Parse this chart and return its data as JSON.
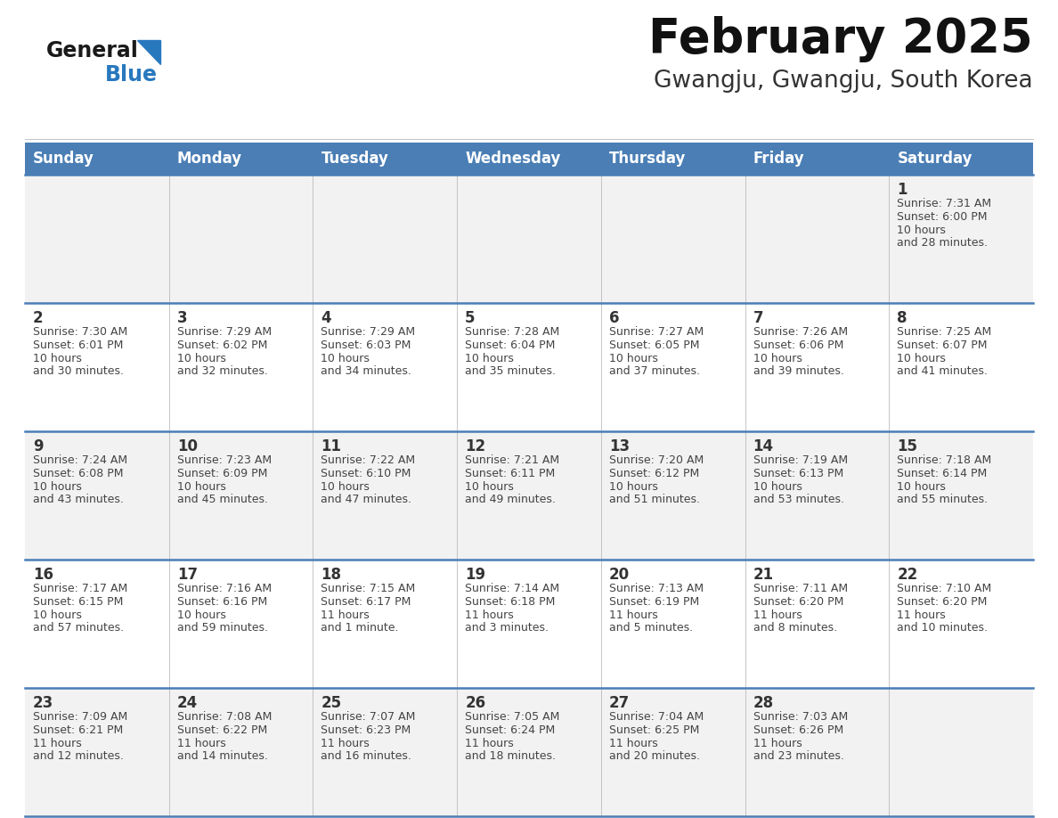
{
  "title": "February 2025",
  "subtitle": "Gwangju, Gwangju, South Korea",
  "days_of_week": [
    "Sunday",
    "Monday",
    "Tuesday",
    "Wednesday",
    "Thursday",
    "Friday",
    "Saturday"
  ],
  "header_bg": "#4A7EB5",
  "header_text": "#FFFFFF",
  "cell_bg_odd": "#F2F2F2",
  "cell_bg_even": "#FFFFFF",
  "row_line_color": "#4A7EB5",
  "text_color": "#444444",
  "day_number_color": "#333333",
  "grid_line_color": "#BBBBBB",
  "calendar_data": [
    [
      null,
      null,
      null,
      null,
      null,
      null,
      {
        "day": "1",
        "sunrise": "7:31 AM",
        "sunset": "6:00 PM",
        "daylight": "10 hours\nand 28 minutes."
      }
    ],
    [
      {
        "day": "2",
        "sunrise": "7:30 AM",
        "sunset": "6:01 PM",
        "daylight": "10 hours\nand 30 minutes."
      },
      {
        "day": "3",
        "sunrise": "7:29 AM",
        "sunset": "6:02 PM",
        "daylight": "10 hours\nand 32 minutes."
      },
      {
        "day": "4",
        "sunrise": "7:29 AM",
        "sunset": "6:03 PM",
        "daylight": "10 hours\nand 34 minutes."
      },
      {
        "day": "5",
        "sunrise": "7:28 AM",
        "sunset": "6:04 PM",
        "daylight": "10 hours\nand 35 minutes."
      },
      {
        "day": "6",
        "sunrise": "7:27 AM",
        "sunset": "6:05 PM",
        "daylight": "10 hours\nand 37 minutes."
      },
      {
        "day": "7",
        "sunrise": "7:26 AM",
        "sunset": "6:06 PM",
        "daylight": "10 hours\nand 39 minutes."
      },
      {
        "day": "8",
        "sunrise": "7:25 AM",
        "sunset": "6:07 PM",
        "daylight": "10 hours\nand 41 minutes."
      }
    ],
    [
      {
        "day": "9",
        "sunrise": "7:24 AM",
        "sunset": "6:08 PM",
        "daylight": "10 hours\nand 43 minutes."
      },
      {
        "day": "10",
        "sunrise": "7:23 AM",
        "sunset": "6:09 PM",
        "daylight": "10 hours\nand 45 minutes."
      },
      {
        "day": "11",
        "sunrise": "7:22 AM",
        "sunset": "6:10 PM",
        "daylight": "10 hours\nand 47 minutes."
      },
      {
        "day": "12",
        "sunrise": "7:21 AM",
        "sunset": "6:11 PM",
        "daylight": "10 hours\nand 49 minutes."
      },
      {
        "day": "13",
        "sunrise": "7:20 AM",
        "sunset": "6:12 PM",
        "daylight": "10 hours\nand 51 minutes."
      },
      {
        "day": "14",
        "sunrise": "7:19 AM",
        "sunset": "6:13 PM",
        "daylight": "10 hours\nand 53 minutes."
      },
      {
        "day": "15",
        "sunrise": "7:18 AM",
        "sunset": "6:14 PM",
        "daylight": "10 hours\nand 55 minutes."
      }
    ],
    [
      {
        "day": "16",
        "sunrise": "7:17 AM",
        "sunset": "6:15 PM",
        "daylight": "10 hours\nand 57 minutes."
      },
      {
        "day": "17",
        "sunrise": "7:16 AM",
        "sunset": "6:16 PM",
        "daylight": "10 hours\nand 59 minutes."
      },
      {
        "day": "18",
        "sunrise": "7:15 AM",
        "sunset": "6:17 PM",
        "daylight": "11 hours\nand 1 minute."
      },
      {
        "day": "19",
        "sunrise": "7:14 AM",
        "sunset": "6:18 PM",
        "daylight": "11 hours\nand 3 minutes."
      },
      {
        "day": "20",
        "sunrise": "7:13 AM",
        "sunset": "6:19 PM",
        "daylight": "11 hours\nand 5 minutes."
      },
      {
        "day": "21",
        "sunrise": "7:11 AM",
        "sunset": "6:20 PM",
        "daylight": "11 hours\nand 8 minutes."
      },
      {
        "day": "22",
        "sunrise": "7:10 AM",
        "sunset": "6:20 PM",
        "daylight": "11 hours\nand 10 minutes."
      }
    ],
    [
      {
        "day": "23",
        "sunrise": "7:09 AM",
        "sunset": "6:21 PM",
        "daylight": "11 hours\nand 12 minutes."
      },
      {
        "day": "24",
        "sunrise": "7:08 AM",
        "sunset": "6:22 PM",
        "daylight": "11 hours\nand 14 minutes."
      },
      {
        "day": "25",
        "sunrise": "7:07 AM",
        "sunset": "6:23 PM",
        "daylight": "11 hours\nand 16 minutes."
      },
      {
        "day": "26",
        "sunrise": "7:05 AM",
        "sunset": "6:24 PM",
        "daylight": "11 hours\nand 18 minutes."
      },
      {
        "day": "27",
        "sunrise": "7:04 AM",
        "sunset": "6:25 PM",
        "daylight": "11 hours\nand 20 minutes."
      },
      {
        "day": "28",
        "sunrise": "7:03 AM",
        "sunset": "6:26 PM",
        "daylight": "11 hours\nand 23 minutes."
      },
      null
    ]
  ],
  "logo_general_color": "#1a1a1a",
  "logo_blue_color": "#2878BE",
  "logo_triangle_color": "#2878BE",
  "fig_width": 11.88,
  "fig_height": 9.18,
  "dpi": 100
}
